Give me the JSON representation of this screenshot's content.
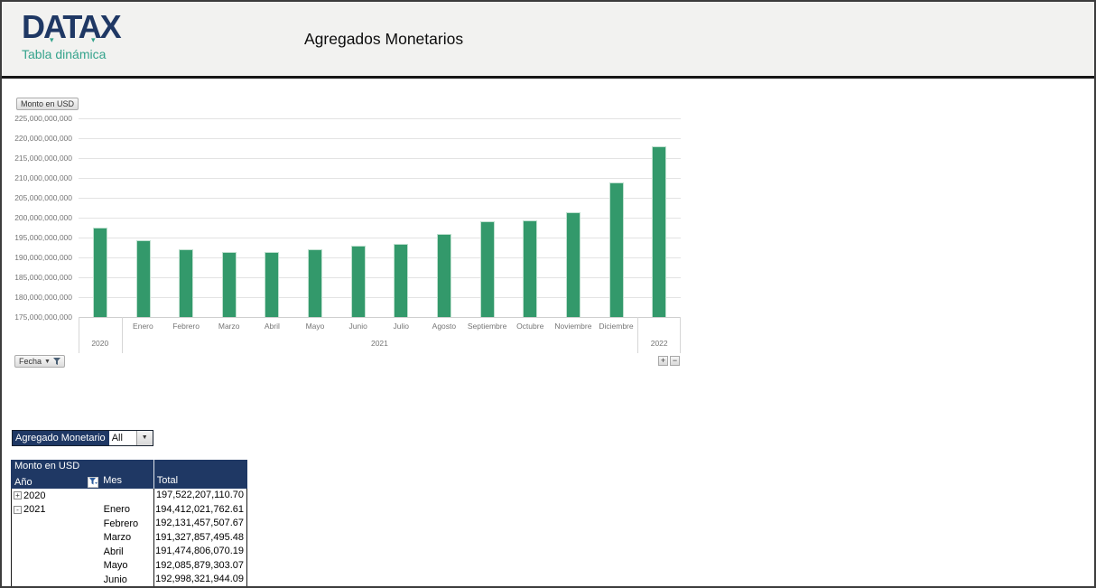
{
  "header": {
    "logo_text": "DATAX",
    "logo_subtitle": "Tabla dinámica",
    "title": "Agregados Monetarios"
  },
  "colors": {
    "navy": "#1f3864",
    "teal": "#35a38c",
    "bar_green": "#33996b",
    "gridline": "#e3e3e3",
    "axis_text": "#757575"
  },
  "chart": {
    "value_field_button": "Monto en USD",
    "axis_field_button": "Fecha",
    "expand_button_label": "+",
    "collapse_button_label": "−"
  },
  "chart_data": {
    "type": "bar",
    "title": "",
    "ylabel": "Monto en USD",
    "xlabel": "Fecha",
    "categories": [
      "2020",
      "Enero",
      "Febrero",
      "Marzo",
      "Abril",
      "Mayo",
      "Junio",
      "Julio",
      "Agosto",
      "Septiembre",
      "Octubre",
      "Noviembre",
      "Diciembre",
      "2022"
    ],
    "values": [
      197522207110.7,
      194412021762.61,
      192131457507.67,
      191327857495.48,
      191474806070.19,
      192085879303.07,
      192998321944.09,
      193400000000,
      196000000000,
      199000000000,
      199250000000,
      201300000000,
      208900000000,
      218000000000
    ],
    "group_axis": [
      {
        "label": "2020",
        "span": 1
      },
      {
        "label": "2021",
        "span": 12
      },
      {
        "label": "2022",
        "span": 1
      }
    ],
    "ylim": [
      175000000000,
      225000000000
    ],
    "ytick_step": 5000000000,
    "grid": true,
    "legend_position": "none",
    "bar_color": "#33996b"
  },
  "filter": {
    "label": "Agregado Monetario",
    "value": "All"
  },
  "pivot": {
    "title": "Monto en USD",
    "columns": {
      "year": "Año",
      "month": "Mes",
      "total": "Total"
    },
    "rows": [
      {
        "expand": "+",
        "year": "2020",
        "mes": "",
        "total": "197,522,207,110.70"
      },
      {
        "expand": "-",
        "year": "2021",
        "mes": "Enero",
        "total": "194,412,021,762.61"
      },
      {
        "expand": "",
        "year": "",
        "mes": "Febrero",
        "total": "192,131,457,507.67"
      },
      {
        "expand": "",
        "year": "",
        "mes": "Marzo",
        "total": "191,327,857,495.48"
      },
      {
        "expand": "",
        "year": "",
        "mes": "Abril",
        "total": "191,474,806,070.19"
      },
      {
        "expand": "",
        "year": "",
        "mes": "Mayo",
        "total": "192,085,879,303.07"
      },
      {
        "expand": "",
        "year": "",
        "mes": "Junio",
        "total": "192,998,321,944.09"
      }
    ]
  }
}
